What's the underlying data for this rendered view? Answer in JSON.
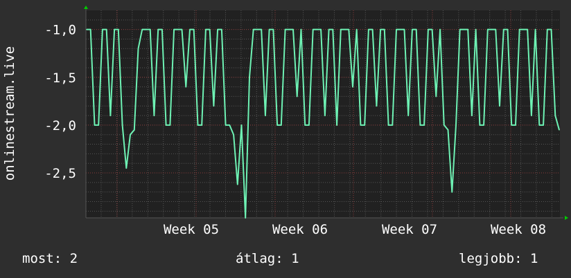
{
  "colors": {
    "background": "#2e2e2e",
    "plot_background": "#212121",
    "line": "#6ef2b4",
    "major_grid": "#8a3a3a",
    "minor_grid": "#555555",
    "arrow": "#00cc00"
  },
  "chart_data": {
    "type": "line",
    "title": "",
    "xlabel": "",
    "ylabel": "onlinestream.live",
    "ylim": [
      -2.97,
      -0.8
    ],
    "yticks": [
      -1.0,
      -1.5,
      -2.0,
      -2.5
    ],
    "ytick_labels": [
      "-1,0",
      "-1,5",
      "-2,0",
      "-2,5"
    ],
    "xtick_labels": [
      "Week 05",
      "Week 06",
      "Week 07",
      "Week 08"
    ],
    "grid": true,
    "series": [
      {
        "values": [
          -1,
          -1,
          -2,
          -2,
          -1,
          -1,
          -1.9,
          -1,
          -1,
          -2,
          -2.45,
          -2.1,
          -2.05,
          -1.2,
          -1,
          -1,
          -1,
          -1.9,
          -1,
          -1,
          -2,
          -2,
          -1,
          -1,
          -1,
          -1.6,
          -1,
          -1,
          -2,
          -2,
          -1,
          -1,
          -1.8,
          -1,
          -1,
          -2,
          -2,
          -2.1,
          -2.62,
          -2.0,
          -2.97,
          -1.5,
          -1,
          -1,
          -1,
          -1.9,
          -1,
          -1,
          -2,
          -2,
          -1,
          -1,
          -1,
          -1.7,
          -1,
          -2,
          -2,
          -1,
          -1,
          -1,
          -1.9,
          -1,
          -1,
          -2,
          -1,
          -1,
          -1,
          -1.6,
          -1,
          -2,
          -2,
          -1,
          -1,
          -1.8,
          -1,
          -1,
          -2,
          -2,
          -1,
          -1,
          -1,
          -1.9,
          -1,
          -1,
          -2,
          -2,
          -1,
          -1,
          -1.7,
          -1,
          -2,
          -2.05,
          -2.7,
          -2.0,
          -1,
          -1,
          -1,
          -1.9,
          -1,
          -2,
          -2,
          -1,
          -1,
          -1,
          -1.8,
          -1,
          -1,
          -2,
          -2,
          -1,
          -1,
          -1,
          -1.9,
          -1,
          -2,
          -2,
          -1,
          -1,
          -1.9,
          -2.05
        ]
      }
    ]
  },
  "legend": {
    "current": "most: 2",
    "average": "átlag: 1",
    "best": "legjobb: 1"
  }
}
